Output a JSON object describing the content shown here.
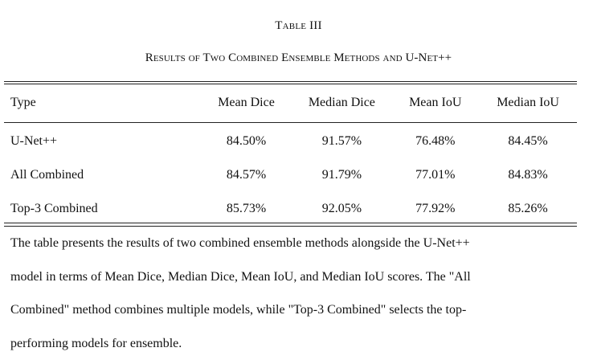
{
  "table_number": "Table III",
  "caption": "Results of Two Combined Ensemble Methods and U-Net++",
  "columns": [
    "Type",
    "Mean Dice",
    "Median Dice",
    "Mean IoU",
    "Median IoU"
  ],
  "rows": [
    {
      "type": "U-Net++",
      "mean_dice": "84.50%",
      "median_dice": "91.57%",
      "mean_iou": "76.48%",
      "median_iou": "84.45%"
    },
    {
      "type": "All Combined",
      "mean_dice": "84.57%",
      "median_dice": "91.79%",
      "mean_iou": "77.01%",
      "median_iou": "84.83%"
    },
    {
      "type": "Top-3 Combined",
      "mean_dice": "85.73%",
      "median_dice": "92.05%",
      "mean_iou": "77.92%",
      "median_iou": "85.26%"
    }
  ],
  "description": {
    "line1": "The table presents the results of two combined ensemble methods alongside the U-Net++",
    "line2": "model in terms of Mean Dice, Median Dice, Mean IoU, and Median IoU scores. The \"All",
    "line3": "Combined\" method combines multiple models, while \"Top-3 Combined\" selects the top-",
    "line4": "performing models for ensemble."
  }
}
